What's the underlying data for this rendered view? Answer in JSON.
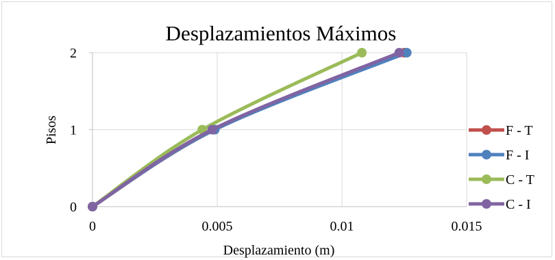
{
  "chart_data": {
    "type": "line",
    "title": "Desplazamientos Máximos",
    "xlabel": "Desplazamiento (m)",
    "ylabel": "Pisos",
    "xlim": [
      0,
      0.015
    ],
    "ylim": [
      0,
      2
    ],
    "x_ticks": [
      0,
      0.005,
      0.01,
      0.015
    ],
    "x_tick_labels": [
      "0",
      "0.005",
      "0.01",
      "0.015"
    ],
    "y_ticks": [
      0,
      1,
      2
    ],
    "y_tick_labels": [
      "0",
      "1",
      "2"
    ],
    "grid": true,
    "legend_position": "right",
    "smooth": true,
    "series": [
      {
        "name": "F - T",
        "color": "#c0504d",
        "x": [
          0,
          0.0049,
          0.0125
        ],
        "y": [
          0,
          1,
          2
        ]
      },
      {
        "name": "F - I",
        "color": "#4f81bd",
        "x": [
          0,
          0.0049,
          0.0126
        ],
        "y": [
          0,
          1,
          2
        ]
      },
      {
        "name": "C - T",
        "color": "#9bbb59",
        "x": [
          0,
          0.0044,
          0.0108
        ],
        "y": [
          0,
          1,
          2
        ]
      },
      {
        "name": "C - I",
        "color": "#8064a2",
        "x": [
          0,
          0.0048,
          0.0123
        ],
        "y": [
          0,
          1,
          2
        ]
      }
    ]
  }
}
